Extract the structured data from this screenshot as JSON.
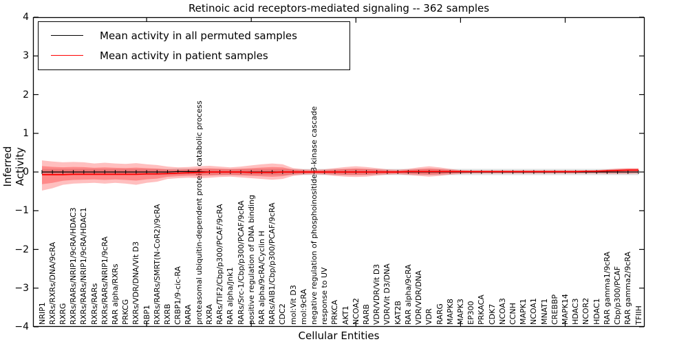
{
  "chart_data": {
    "type": "line",
    "title": "Retinoic acid receptors-mediated signaling -- 362 samples",
    "xlabel": "Cellular Entities",
    "ylabel": "Inferred Activity",
    "ylim": [
      -4,
      4
    ],
    "yticks": [
      4,
      3,
      2,
      1,
      0,
      -1,
      -2,
      -3,
      -4
    ],
    "xtick_indices": [
      10,
      20,
      30,
      40,
      50
    ],
    "grid": false,
    "legend_position": "upper left",
    "categories": [
      "NRIP1",
      "RXRs/RXRs/DNA/9cRA",
      "RXRG",
      "RXRs/RARs/NRIP1/9cRA/HDAC3",
      "RXRs/RARs/NRIP1/9cRA/HDAC1",
      "RXRs/RARs",
      "RXRs/RARs/NRIP1/9cRA",
      "RAR alpha/RXRs",
      "PRKCG",
      "RXRs/VDR/DNA/Vit D3",
      "RBP1",
      "RXRs/RARs/SMRT(N-CoR2)/9cRA",
      "RXRB",
      "CRBP1/9-cic-RA",
      "RARA",
      "proteasomal ubiquitin-dependent protein catabolic process",
      "RXRA",
      "RARs/TIF2/Cbp/p300/PCAF/9cRA",
      "RAR alpha/Jnk1",
      "RARs/Src-1/Cbp/p300/PCAF/9cRA",
      "positive regulation of DNA binding",
      "RAR alpha/9cRA/Cyclin H",
      "RARs/AIB1/Cbp/p300/PCAF/9cRA",
      "CDC2",
      "mol:Vit D3",
      "mol:9cRA",
      "negative regulation of phosphoinositide 3-kinase cascade",
      "response to UV",
      "PRKCA",
      "AKT1",
      "NCOA2",
      "RARB",
      "VDR/VDR/Vit D3",
      "VDR/Vit D3/DNA",
      "KAT2B",
      "RAR alpha/9cRA",
      "VDR/VDR/DNA",
      "VDR",
      "RARG",
      "MAPK8",
      "MAPK3",
      "EP300",
      "PRKACA",
      "CDK7",
      "NCOA3",
      "CCNH",
      "MAPK1",
      "NCOA1",
      "MNAT1",
      "CREBBP",
      "MAPK14",
      "HDAC3",
      "NCOR2",
      "HDAC1",
      "RAR gamma1/9cRA",
      "Cbp/p300/PCAF",
      "RAR gamma2/9cRA",
      "TFIIH"
    ],
    "series": [
      {
        "name": "Mean activity in all permuted samples",
        "color": "#000000",
        "band_color": "#888888",
        "band_halfwidth": 0.08,
        "values": [
          0,
          0,
          0,
          0,
          0,
          0,
          0,
          0,
          0,
          0,
          0,
          0,
          0,
          0.01,
          0.01,
          0.01,
          0,
          0,
          0,
          0,
          0,
          0,
          0,
          0,
          0,
          0,
          0,
          0,
          0,
          0,
          0,
          0,
          0,
          0,
          0,
          0,
          0,
          0,
          0,
          0,
          0,
          0,
          0,
          0,
          0,
          0,
          0,
          0,
          0,
          0,
          0,
          0,
          0,
          0,
          0,
          0,
          0,
          0
        ]
      },
      {
        "name": "Mean activity in patient samples",
        "color": "#ff0000",
        "band_color": "#ff0000",
        "inner_band_scale": 0.6,
        "values": [
          -0.07,
          -0.07,
          -0.07,
          -0.06,
          -0.06,
          -0.06,
          -0.06,
          -0.06,
          -0.06,
          -0.06,
          -0.05,
          -0.05,
          -0.04,
          -0.03,
          -0.02,
          -0.01,
          0,
          0,
          0,
          0,
          -0.01,
          -0.01,
          -0.01,
          0,
          0,
          0,
          0,
          0,
          0,
          0,
          0,
          0,
          0,
          0,
          0,
          0.01,
          0.01,
          0.01,
          0.01,
          0.01,
          0.01,
          0.01,
          0.01,
          0.01,
          0.01,
          0.01,
          0.01,
          0.01,
          0.01,
          0.01,
          0.01,
          0.01,
          0.02,
          0.02,
          0.03,
          0.04,
          0.05,
          0.05
        ],
        "band_upper": [
          0.3,
          0.27,
          0.25,
          0.26,
          0.25,
          0.22,
          0.24,
          0.22,
          0.21,
          0.23,
          0.2,
          0.18,
          0.14,
          0.12,
          0.13,
          0.15,
          0.16,
          0.14,
          0.12,
          0.14,
          0.17,
          0.2,
          0.22,
          0.2,
          0.1,
          0.07,
          0.06,
          0.07,
          0.1,
          0.13,
          0.15,
          0.13,
          0.1,
          0.07,
          0.06,
          0.08,
          0.12,
          0.15,
          0.12,
          0.08,
          0.05,
          0.04,
          0.04,
          0.04,
          0.04,
          0.04,
          0.04,
          0.04,
          0.04,
          0.04,
          0.04,
          0.04,
          0.04,
          0.05,
          0.07,
          0.09,
          0.1,
          0.1
        ],
        "band_lower": [
          -0.48,
          -0.42,
          -0.33,
          -0.3,
          -0.29,
          -0.28,
          -0.3,
          -0.28,
          -0.3,
          -0.33,
          -0.28,
          -0.25,
          -0.18,
          -0.16,
          -0.15,
          -0.16,
          -0.15,
          -0.13,
          -0.12,
          -0.14,
          -0.16,
          -0.18,
          -0.2,
          -0.18,
          -0.1,
          -0.07,
          -0.06,
          -0.07,
          -0.1,
          -0.12,
          -0.13,
          -0.12,
          -0.09,
          -0.07,
          -0.06,
          -0.08,
          -0.1,
          -0.12,
          -0.1,
          -0.07,
          -0.05,
          -0.04,
          -0.04,
          -0.04,
          -0.04,
          -0.04,
          -0.04,
          -0.04,
          -0.04,
          -0.04,
          -0.04,
          -0.04,
          -0.04,
          -0.04,
          -0.05,
          -0.05,
          -0.05,
          -0.04
        ]
      }
    ]
  },
  "colors": {
    "axis": "#000000",
    "background": "#ffffff"
  }
}
